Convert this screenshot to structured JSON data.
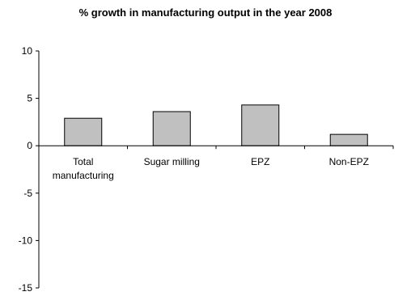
{
  "chart_data": {
    "type": "bar",
    "title": "% growth in manufacturing output in the year 2008",
    "xlabel": "",
    "ylabel": "",
    "categories": [
      [
        "Total",
        "manufacturing"
      ],
      [
        "Sugar milling"
      ],
      [
        "EPZ"
      ],
      [
        "Non-EPZ"
      ]
    ],
    "values": [
      2.9,
      3.6,
      4.3,
      1.2
    ],
    "ylim": [
      -15,
      10
    ],
    "yticks": [
      10,
      5,
      0,
      -5,
      -10,
      -15
    ],
    "grid": false,
    "legend": "none",
    "colors": {
      "bar_fill": "#c0c0c0",
      "bar_stroke": "#000000",
      "axis": "#000000"
    }
  }
}
